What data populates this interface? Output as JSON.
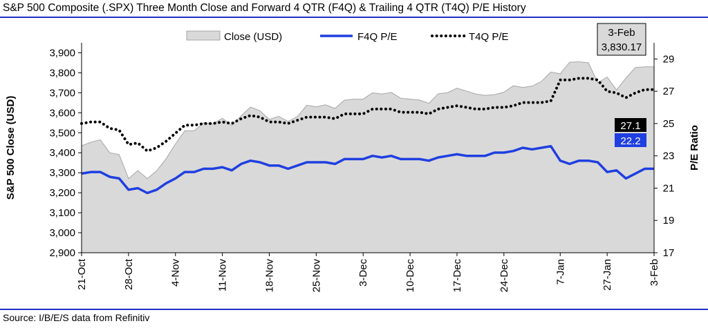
{
  "header": {
    "title": "S&P 500 Composite (.SPX) Three Month Close and Forward 4 QTR (F4Q) & Trailing 4 QTR (T4Q) P/E History"
  },
  "footer": {
    "source": "Source: I/B/E/S data from Refinitiv"
  },
  "colors": {
    "rule": "#1c2fc9",
    "area_fill": "#d9d9d9",
    "area_stroke": "#a6a6a6",
    "f4q_line": "#1f3fe0",
    "t4q_line": "#000000",
    "callout_bg": "#d9d9d9"
  },
  "chart_data": {
    "type": "area",
    "title": "S&P 500 Composite (.SPX) Three Month Close and Forward 4 QTR (F4Q) & Trailing 4 QTR (T4Q) P/E History",
    "ylabel": "S&P 500 Close (USD)",
    "y2label": "P/E Ratio",
    "ylim": [
      2900,
      3950
    ],
    "y2lim": [
      17,
      30
    ],
    "yticks": [
      "2,900",
      "3,000",
      "3,100",
      "3,200",
      "3,300",
      "3,400",
      "3,500",
      "3,600",
      "3,700",
      "3,800",
      "3,900"
    ],
    "yticks_values": [
      2900,
      3000,
      3100,
      3200,
      3300,
      3400,
      3500,
      3600,
      3700,
      3800,
      3900
    ],
    "y2ticks": [
      "17",
      "19",
      "21",
      "23",
      "25",
      "27",
      "29"
    ],
    "y2ticks_values": [
      17,
      19,
      21,
      23,
      25,
      27,
      29
    ],
    "xticks": [
      "21-Oct",
      "28-Oct",
      "4-Nov",
      "11-Nov",
      "18-Nov",
      "25-Nov",
      "3-Dec",
      "10-Dec",
      "17-Dec",
      "24-Dec",
      "7-Jan",
      "27-Jan",
      "3-Feb"
    ],
    "xtick_index": [
      0,
      5,
      10,
      15,
      20,
      25,
      30,
      35,
      40,
      45,
      51,
      56,
      61
    ],
    "legend_position": "top",
    "grid": false,
    "series": [
      {
        "name": "Close (USD)",
        "kind": "area",
        "axis": "left",
        "values": [
          3435,
          3453,
          3465,
          3400,
          3391,
          3271,
          3311,
          3271,
          3310,
          3370,
          3444,
          3510,
          3510,
          3550,
          3545,
          3573,
          3537,
          3585,
          3629,
          3610,
          3567,
          3582,
          3557,
          3581,
          3638,
          3630,
          3640,
          3622,
          3663,
          3668,
          3668,
          3700,
          3694,
          3702,
          3673,
          3668,
          3664,
          3647,
          3695,
          3701,
          3723,
          3709,
          3694,
          3687,
          3691,
          3703,
          3735,
          3727,
          3733,
          3757,
          3804,
          3795,
          3853,
          3855,
          3850,
          3750,
          3779,
          3714,
          3774,
          3826,
          3830,
          3830
        ]
      },
      {
        "name": "F4Q P/E",
        "kind": "line",
        "axis": "right",
        "values": [
          21.9,
          22.0,
          22.0,
          21.7,
          21.6,
          20.9,
          21.0,
          20.7,
          20.9,
          21.3,
          21.6,
          22.0,
          22.0,
          22.2,
          22.2,
          22.3,
          22.1,
          22.5,
          22.7,
          22.6,
          22.4,
          22.4,
          22.2,
          22.4,
          22.6,
          22.6,
          22.6,
          22.5,
          22.8,
          22.8,
          22.8,
          23.0,
          22.9,
          23.0,
          22.8,
          22.8,
          22.8,
          22.7,
          22.9,
          23.0,
          23.1,
          23.0,
          23.0,
          23.0,
          23.2,
          23.2,
          23.3,
          23.5,
          23.4,
          23.5,
          23.6,
          22.7,
          22.5,
          22.7,
          22.7,
          22.6,
          22.0,
          22.1,
          21.6,
          21.9,
          22.2,
          22.2
        ]
      },
      {
        "name": "T4Q P/E",
        "kind": "line",
        "axis": "right",
        "values": [
          25.0,
          25.1,
          25.1,
          24.7,
          24.6,
          23.7,
          23.8,
          23.3,
          23.5,
          23.9,
          24.4,
          24.9,
          24.9,
          25.0,
          25.0,
          25.1,
          25.0,
          25.3,
          25.5,
          25.4,
          25.1,
          25.1,
          25.0,
          25.2,
          25.4,
          25.4,
          25.4,
          25.3,
          25.6,
          25.6,
          25.6,
          25.9,
          25.9,
          25.9,
          25.7,
          25.7,
          25.7,
          25.6,
          25.9,
          26.0,
          26.1,
          26.0,
          25.9,
          25.9,
          26.0,
          26.0,
          26.1,
          26.3,
          26.3,
          26.3,
          26.4,
          27.7,
          27.7,
          27.8,
          27.8,
          27.7,
          27.0,
          26.9,
          26.6,
          26.9,
          27.1,
          27.1
        ]
      }
    ],
    "annotations": {
      "date_callout": {
        "date": "3-Feb",
        "value": "3,830.17"
      },
      "t4q_last": "27.1",
      "f4q_last": "22.2"
    }
  }
}
